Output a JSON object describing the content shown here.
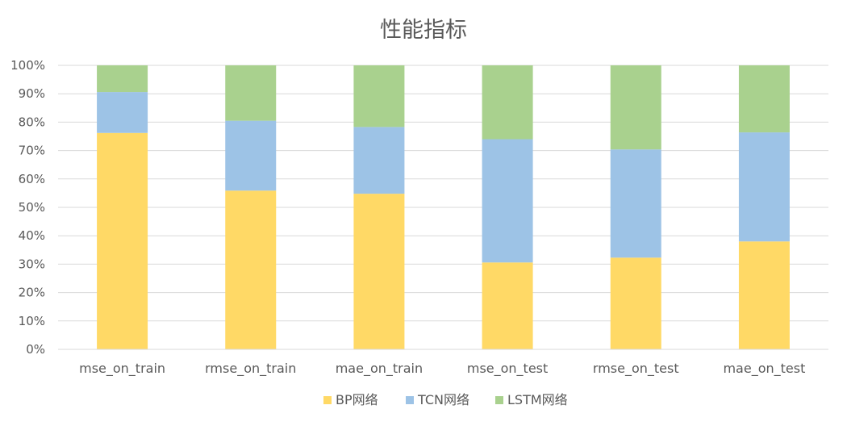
{
  "chart_data": {
    "type": "bar",
    "stacked": true,
    "percent": true,
    "title": "性能指标",
    "categories": [
      "mse_on_train",
      "rmse_on_train",
      "mae_on_train",
      "mse_on_test",
      "rmse_on_test",
      "mae_on_test"
    ],
    "series": [
      {
        "name": "BP网络",
        "color": "#FFD966",
        "values": [
          76.2,
          55.9,
          54.8,
          30.6,
          32.3,
          38.0
        ]
      },
      {
        "name": "TCN网络",
        "color": "#9DC3E6",
        "values": [
          14.4,
          24.6,
          23.5,
          43.4,
          38.1,
          38.4
        ]
      },
      {
        "name": "LSTM网络",
        "color": "#A9D18E",
        "values": [
          9.4,
          19.5,
          21.7,
          26.0,
          29.6,
          23.6
        ]
      }
    ],
    "ylim": [
      0,
      100
    ],
    "yticks": [
      "0%",
      "10%",
      "20%",
      "30%",
      "40%",
      "50%",
      "60%",
      "70%",
      "80%",
      "90%",
      "100%"
    ],
    "grid": true,
    "legend": "bottom"
  }
}
